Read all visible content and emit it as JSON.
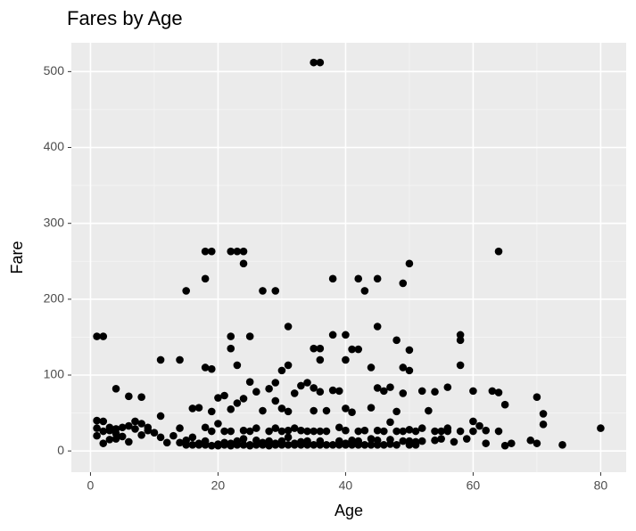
{
  "chart_data": {
    "type": "scatter",
    "title": "Fares by Age",
    "x_label": "Age",
    "y_label": "Fare",
    "x": [
      35,
      36,
      64,
      18,
      19,
      22,
      23,
      24,
      24,
      50,
      15,
      18,
      27,
      29,
      38,
      42,
      43,
      45,
      49,
      31,
      45,
      1,
      2,
      22,
      25,
      35,
      36,
      38,
      40,
      41,
      42,
      58,
      58,
      48,
      50,
      11,
      14,
      18,
      19,
      22,
      23,
      36,
      40,
      44,
      58,
      49,
      50,
      30,
      31,
      4,
      6,
      8,
      29,
      33,
      47,
      56,
      60,
      63,
      64,
      65,
      70,
      71,
      71,
      80,
      74,
      70,
      69,
      65,
      62,
      61,
      60,
      59,
      57,
      56,
      55,
      54,
      53,
      52,
      51,
      1,
      1,
      1,
      2,
      2,
      2,
      3,
      3,
      3,
      4,
      4,
      4,
      5,
      5,
      6,
      6,
      7,
      7,
      8,
      8,
      9,
      9,
      10,
      11,
      11,
      12,
      13,
      14,
      14,
      15,
      15,
      16,
      16,
      16,
      17,
      17,
      17,
      18,
      18,
      18,
      19,
      19,
      19,
      20,
      20,
      20,
      20,
      21,
      21,
      21,
      21,
      22,
      22,
      22,
      22,
      23,
      23,
      23,
      24,
      24,
      24,
      24,
      25,
      25,
      25,
      25,
      26,
      26,
      26,
      26,
      27,
      27,
      27,
      28,
      28,
      28,
      28,
      29,
      29,
      29,
      29,
      30,
      30,
      30,
      30,
      31,
      31,
      31,
      31,
      32,
      32,
      32,
      32,
      33,
      33,
      33,
      34,
      34,
      34,
      34,
      35,
      35,
      35,
      35,
      36,
      36,
      36,
      36,
      37,
      37,
      37,
      38,
      38,
      39,
      39,
      39,
      39,
      40,
      40,
      40,
      40,
      41,
      41,
      41,
      42,
      42,
      42,
      43,
      43,
      44,
      44,
      44,
      45,
      45,
      45,
      45,
      46,
      46,
      46,
      47,
      47,
      47,
      48,
      48,
      48,
      49,
      49,
      49,
      50,
      50,
      50,
      51,
      51,
      52,
      52,
      54,
      54,
      55,
      56,
      58,
      60,
      62,
      64,
      66
    ],
    "values": [
      512,
      512,
      263,
      263,
      263,
      263,
      263,
      263,
      247,
      247,
      211,
      227,
      211,
      211,
      227,
      227,
      211,
      227,
      221,
      164,
      164,
      151,
      151,
      151,
      151,
      135,
      135,
      153,
      153,
      134,
      134,
      153,
      146,
      146,
      133,
      120,
      120,
      110,
      108,
      135,
      113,
      120,
      120,
      110,
      113,
      110,
      106,
      106,
      113,
      82,
      72,
      71,
      90,
      86,
      84,
      84,
      79,
      79,
      77,
      61,
      71,
      49,
      35,
      30,
      8,
      10,
      14,
      7,
      10,
      33,
      39,
      16,
      12,
      26,
      16,
      78,
      53,
      30,
      8,
      30,
      40,
      20,
      26,
      39,
      10,
      27,
      31,
      15,
      16,
      29,
      23,
      19,
      31,
      12,
      33,
      29,
      39,
      21,
      36,
      27,
      31,
      24,
      46,
      18,
      11,
      20,
      30,
      11,
      8,
      14,
      18,
      56,
      8,
      8,
      10,
      57,
      8,
      13,
      31,
      7,
      26,
      52,
      9,
      7,
      36,
      70,
      8,
      11,
      73,
      26,
      10,
      7,
      55,
      26,
      8,
      13,
      63,
      8,
      16,
      69,
      27,
      8,
      7,
      26,
      91,
      8,
      14,
      30,
      78,
      8,
      11,
      53,
      7,
      13,
      26,
      82,
      8,
      10,
      30,
      66,
      8,
      13,
      26,
      56,
      8,
      18,
      27,
      52,
      8,
      10,
      30,
      76,
      8,
      12,
      27,
      8,
      13,
      26,
      90,
      8,
      53,
      26,
      83,
      8,
      13,
      26,
      78,
      8,
      26,
      53,
      8,
      80,
      8,
      13,
      31,
      79,
      8,
      10,
      27,
      56,
      8,
      14,
      51,
      8,
      13,
      26,
      8,
      27,
      8,
      16,
      57,
      8,
      14,
      27,
      83,
      8,
      26,
      79,
      9,
      15,
      38,
      8,
      26,
      52,
      13,
      26,
      76,
      8,
      13,
      28,
      12,
      26,
      13,
      79,
      14,
      26,
      26,
      30,
      26,
      26,
      27,
      26,
      10
    ],
    "color": "#000000",
    "xlim": [
      -3,
      84
    ],
    "ylim": [
      -28,
      538
    ],
    "xticks": [
      0,
      20,
      40,
      60,
      80
    ],
    "yticks": [
      0,
      100,
      200,
      300,
      400,
      500
    ],
    "minor_xgrid": [
      10,
      30,
      50,
      70
    ],
    "minor_ygrid": [
      50,
      150,
      250,
      350,
      450
    ],
    "grid": true
  }
}
